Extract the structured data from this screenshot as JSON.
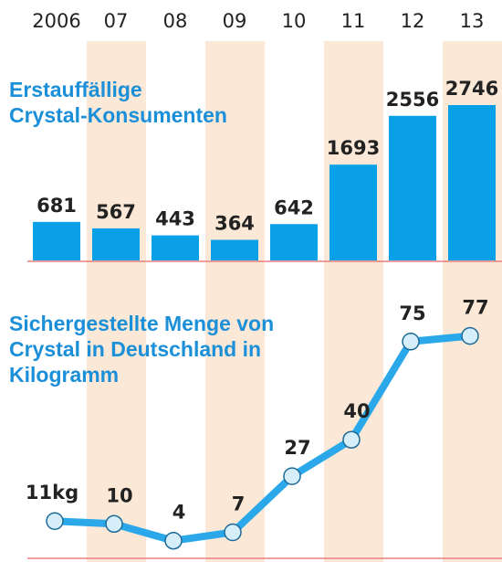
{
  "chart_data": [
    {
      "type": "bar",
      "title": "Erstauffällige\nCrystal-Konsumenten",
      "categories": [
        "2006",
        "07",
        "08",
        "09",
        "10",
        "11",
        "12",
        "13"
      ],
      "values": [
        681,
        567,
        443,
        364,
        642,
        1693,
        2556,
        2746
      ],
      "color": "#0aa0e8"
    },
    {
      "type": "line",
      "title": "Sichergestellte Menge von\nCrystal in Deutschland in\nKilogramm",
      "values": [
        11,
        10,
        4,
        7,
        27,
        40,
        75,
        77
      ],
      "value_labels": [
        "11kg",
        "10",
        "4",
        "7",
        "27",
        "40",
        "75",
        "77"
      ],
      "color": "#2aa8ea"
    }
  ]
}
